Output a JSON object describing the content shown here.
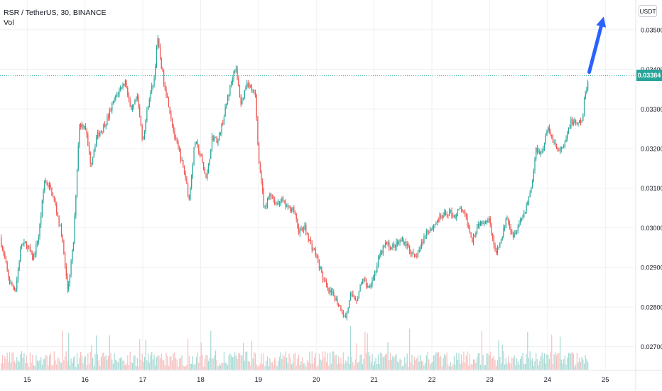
{
  "header": {
    "symbol_line": "RSR / TetherUS, 30, BINANCE",
    "indicator": "Vol"
  },
  "currency_button": "USDT",
  "current_price": {
    "label": "0.03384",
    "value": 0.03384,
    "color": "#26a69a"
  },
  "colors": {
    "up": "#26a69a",
    "down": "#ef5350",
    "vol_up": "#a6d9d3",
    "vol_down": "#f7c0bf",
    "grid": "#eef0f3",
    "arrow": "#2962ff",
    "axis_text": "#131722"
  },
  "annotation": {
    "type": "arrow",
    "icon": "arrow-up-icon",
    "from": {
      "day": 24.72,
      "price": 0.03393
    },
    "to": {
      "day": 24.97,
      "price": 0.03533
    }
  },
  "chart_data": {
    "type": "candlestick",
    "title": "",
    "xlabel": "",
    "ylabel": "",
    "x_ticks": [
      "15",
      "16",
      "17",
      "18",
      "19",
      "20",
      "21",
      "22",
      "23",
      "24",
      "25"
    ],
    "x_tick_days": [
      15,
      16,
      17,
      18,
      19,
      20,
      21,
      22,
      23,
      24,
      25
    ],
    "xlim": [
      14.53,
      25.5
    ],
    "y_ticks": [
      "0.03500",
      "0.03400",
      "0.03300",
      "0.03200",
      "0.03100",
      "0.03000",
      "0.02900",
      "0.02800",
      "0.02700"
    ],
    "y_tick_values": [
      0.035,
      0.034,
      0.033,
      0.032,
      0.031,
      0.03,
      0.029,
      0.028,
      0.027
    ],
    "ylim": [
      0.02642,
      0.03575
    ],
    "grid": true,
    "scale": "linear",
    "series": [
      {
        "name": "RSR / TetherUS",
        "kind": "close",
        "points": [
          [
            14.53,
            0.02975
          ],
          [
            14.7,
            0.0286
          ],
          [
            14.8,
            0.02845
          ],
          [
            14.9,
            0.0296
          ],
          [
            15.0,
            0.02955
          ],
          [
            15.1,
            0.0292
          ],
          [
            15.2,
            0.0298
          ],
          [
            15.3,
            0.0312
          ],
          [
            15.4,
            0.031
          ],
          [
            15.5,
            0.0305
          ],
          [
            15.6,
            0.0298
          ],
          [
            15.7,
            0.0284
          ],
          [
            15.8,
            0.0296
          ],
          [
            15.9,
            0.0326
          ],
          [
            15.95,
            0.0326
          ],
          [
            16.0,
            0.0326
          ],
          [
            16.1,
            0.0316
          ],
          [
            16.2,
            0.0323
          ],
          [
            16.3,
            0.0325
          ],
          [
            16.4,
            0.0328
          ],
          [
            16.5,
            0.0332
          ],
          [
            16.6,
            0.0335
          ],
          [
            16.7,
            0.0337
          ],
          [
            16.8,
            0.0329
          ],
          [
            16.9,
            0.0333
          ],
          [
            17.0,
            0.0322
          ],
          [
            17.1,
            0.0332
          ],
          [
            17.2,
            0.0338
          ],
          [
            17.25,
            0.0348
          ],
          [
            17.35,
            0.0338
          ],
          [
            17.45,
            0.0331
          ],
          [
            17.55,
            0.0323
          ],
          [
            17.65,
            0.0318
          ],
          [
            17.75,
            0.0312
          ],
          [
            17.8,
            0.0307
          ],
          [
            17.9,
            0.0322
          ],
          [
            18.0,
            0.0318
          ],
          [
            18.1,
            0.0312
          ],
          [
            18.2,
            0.0323
          ],
          [
            18.3,
            0.0322
          ],
          [
            18.4,
            0.0328
          ],
          [
            18.5,
            0.0335
          ],
          [
            18.6,
            0.0341
          ],
          [
            18.7,
            0.0331
          ],
          [
            18.8,
            0.0337
          ],
          [
            18.95,
            0.0333
          ],
          [
            19.0,
            0.0318
          ],
          [
            19.05,
            0.0312
          ],
          [
            19.1,
            0.0304
          ],
          [
            19.2,
            0.0309
          ],
          [
            19.3,
            0.0306
          ],
          [
            19.4,
            0.0307
          ],
          [
            19.5,
            0.0305
          ],
          [
            19.6,
            0.0305
          ],
          [
            19.7,
            0.0299
          ],
          [
            19.8,
            0.03
          ],
          [
            19.9,
            0.0296
          ],
          [
            20.0,
            0.0293
          ],
          [
            20.1,
            0.0288
          ],
          [
            20.2,
            0.0284
          ],
          [
            20.3,
            0.0283
          ],
          [
            20.45,
            0.0279
          ],
          [
            20.5,
            0.0277
          ],
          [
            20.6,
            0.0283
          ],
          [
            20.7,
            0.0282
          ],
          [
            20.8,
            0.0287
          ],
          [
            20.9,
            0.0285
          ],
          [
            21.0,
            0.0288
          ],
          [
            21.1,
            0.0293
          ],
          [
            21.2,
            0.0296
          ],
          [
            21.3,
            0.0295
          ],
          [
            21.4,
            0.0296
          ],
          [
            21.5,
            0.0297
          ],
          [
            21.6,
            0.0295
          ],
          [
            21.7,
            0.0292
          ],
          [
            21.8,
            0.0295
          ],
          [
            21.9,
            0.0299
          ],
          [
            22.0,
            0.03
          ],
          [
            22.1,
            0.0302
          ],
          [
            22.2,
            0.0303
          ],
          [
            22.3,
            0.0304
          ],
          [
            22.4,
            0.0303
          ],
          [
            22.5,
            0.0305
          ],
          [
            22.6,
            0.0302
          ],
          [
            22.7,
            0.0297
          ],
          [
            22.8,
            0.0301
          ],
          [
            22.9,
            0.0302
          ],
          [
            23.0,
            0.0302
          ],
          [
            23.1,
            0.0293
          ],
          [
            23.2,
            0.0297
          ],
          [
            23.3,
            0.0303
          ],
          [
            23.4,
            0.0298
          ],
          [
            23.5,
            0.0301
          ],
          [
            23.6,
            0.0304
          ],
          [
            23.7,
            0.0309
          ],
          [
            23.75,
            0.0313
          ],
          [
            23.8,
            0.032
          ],
          [
            23.9,
            0.0319
          ],
          [
            24.0,
            0.0325
          ],
          [
            24.1,
            0.0322
          ],
          [
            24.2,
            0.0319
          ],
          [
            24.3,
            0.0321
          ],
          [
            24.4,
            0.0327
          ],
          [
            24.5,
            0.0326
          ],
          [
            24.6,
            0.0327
          ],
          [
            24.65,
            0.0334
          ],
          [
            24.7,
            0.0337
          ]
        ]
      },
      {
        "name": "Vol",
        "kind": "volume",
        "range": [
          0,
          1
        ]
      }
    ]
  }
}
